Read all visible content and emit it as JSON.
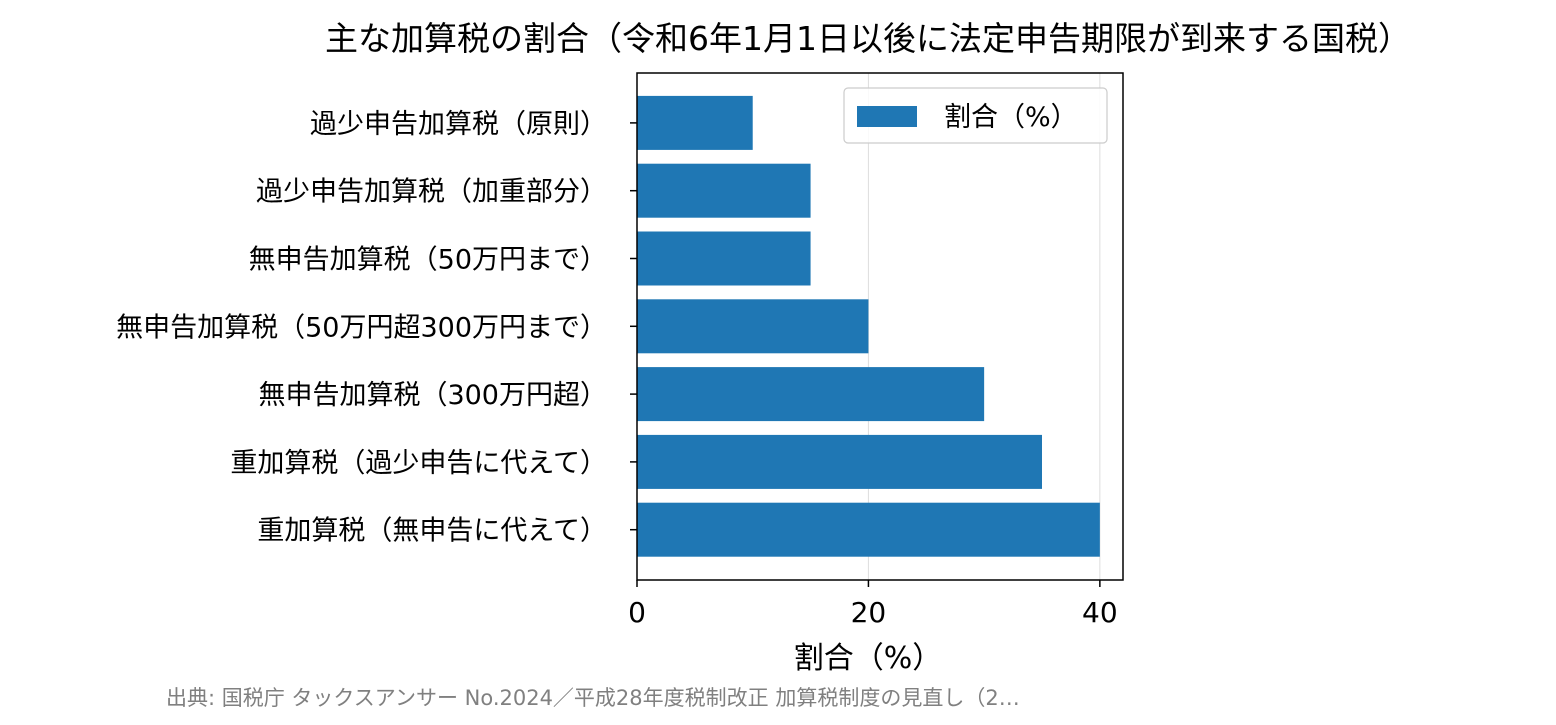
{
  "chart_data": {
    "type": "bar",
    "orientation": "horizontal",
    "title": "主な加算税の割合（令和6年1月1日以後に法定申告期限が到来する国税）",
    "categories": [
      "過少申告加算税（原則）",
      "過少申告加算税（加重部分）",
      "無申告加算税（50万円まで）",
      "無申告加算税（50万円超300万円まで）",
      "無申告加算税（300万円超）",
      "重加算税（過少申告に代えて）",
      "重加算税（無申告に代えて）"
    ],
    "series": [
      {
        "name": "割合（%）",
        "values": [
          10,
          15,
          15,
          20,
          30,
          35,
          40
        ]
      }
    ],
    "xlabel": "割合（%）",
    "ylabel": "",
    "xlim": [
      0,
      42
    ],
    "xticks": [
      0,
      20,
      40
    ],
    "grid": "vertical",
    "legend": "upper-right",
    "bar_color": "#1f77b4",
    "source": "出典: 国税庁 タックスアンサー No.2024／平成28年度税制改正 加算税制度の見直し（2…"
  }
}
